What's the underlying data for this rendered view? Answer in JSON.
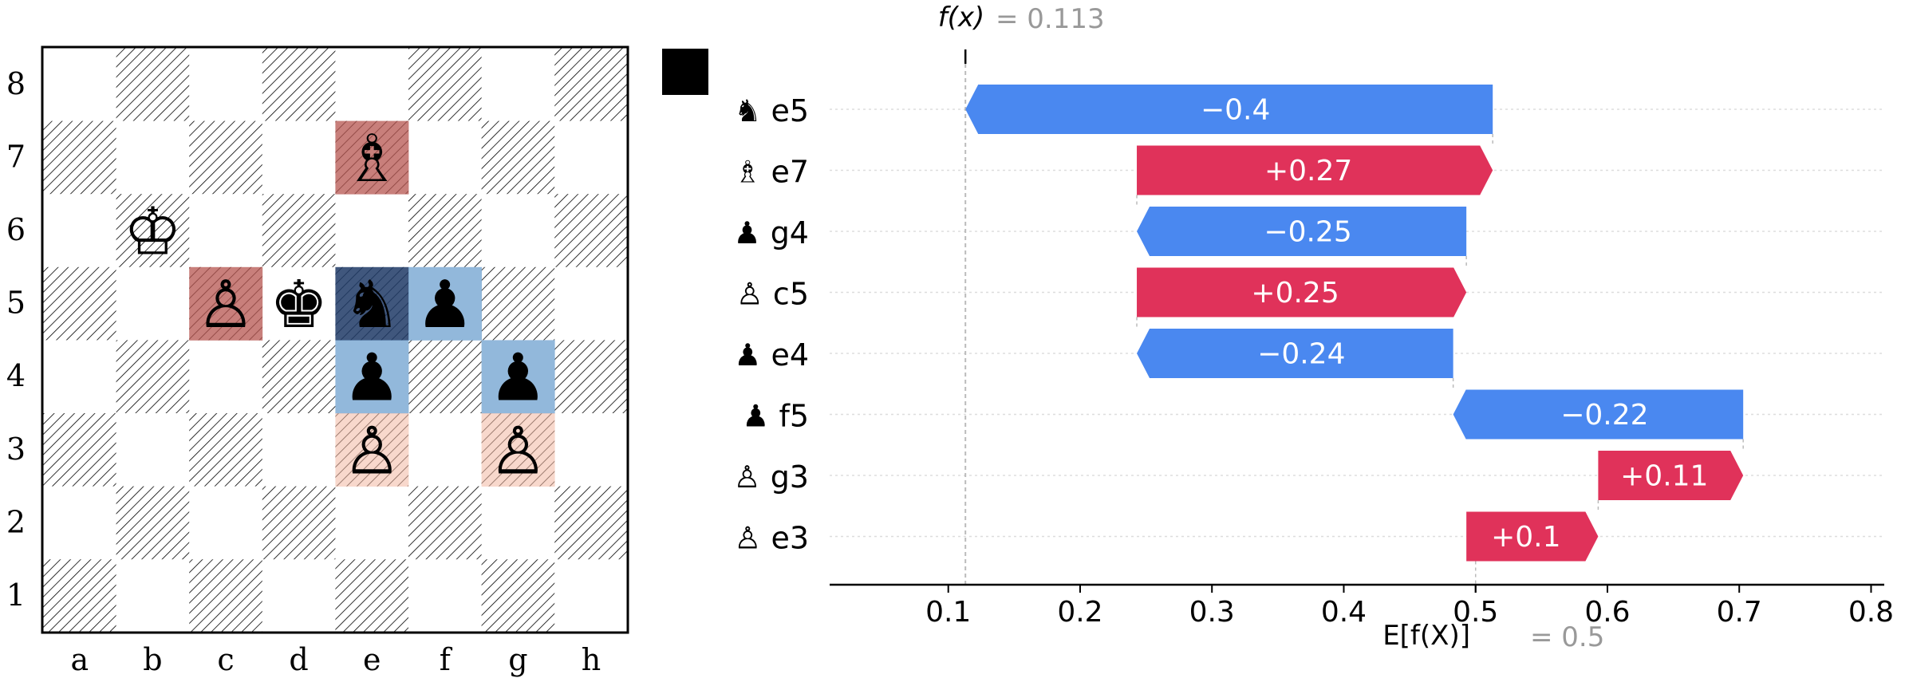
{
  "board": {
    "files": [
      "a",
      "b",
      "c",
      "d",
      "e",
      "f",
      "g",
      "h"
    ],
    "ranks": [
      "8",
      "7",
      "6",
      "5",
      "4",
      "3",
      "2",
      "1"
    ],
    "side_to_move_color": "#000000",
    "pieces": [
      {
        "square": "e7",
        "glyph": "♗",
        "name": "white-bishop"
      },
      {
        "square": "b6",
        "glyph": "♔",
        "name": "white-king"
      },
      {
        "square": "c5",
        "glyph": "♙",
        "name": "white-pawn"
      },
      {
        "square": "d5",
        "glyph": "♚",
        "name": "black-king"
      },
      {
        "square": "e5",
        "glyph": "♞",
        "name": "black-knight"
      },
      {
        "square": "f5",
        "glyph": "♟",
        "name": "black-pawn"
      },
      {
        "square": "e4",
        "glyph": "♟",
        "name": "black-pawn"
      },
      {
        "square": "g4",
        "glyph": "♟",
        "name": "black-pawn"
      },
      {
        "square": "e3",
        "glyph": "♙",
        "name": "white-pawn"
      },
      {
        "square": "g3",
        "glyph": "♙",
        "name": "white-pawn"
      }
    ],
    "highlights": [
      {
        "square": "e7",
        "color": "#b5544f",
        "opacity": 0.75
      },
      {
        "square": "c5",
        "color": "#b5544f",
        "opacity": 0.75
      },
      {
        "square": "e5",
        "color": "#1f3a66",
        "opacity": 0.85
      },
      {
        "square": "f5",
        "color": "#6ea0cf",
        "opacity": 0.75
      },
      {
        "square": "e4",
        "color": "#6ea0cf",
        "opacity": 0.75
      },
      {
        "square": "g4",
        "color": "#6ea0cf",
        "opacity": 0.75
      },
      {
        "square": "e3",
        "color": "#f2b8a2",
        "opacity": 0.55
      },
      {
        "square": "g3",
        "color": "#f2b8a2",
        "opacity": 0.55
      }
    ]
  },
  "chart_data": {
    "type": "waterfall",
    "fx_symbol": "f(x)",
    "fx_value_text": "= 0.113",
    "fx": 0.113,
    "base_symbol": "E[f(X)]",
    "base_value_text": "= 0.5",
    "base_value": 0.5,
    "xlim": [
      0.01,
      0.81
    ],
    "ticks": [
      0.1,
      0.2,
      0.3,
      0.4,
      0.5,
      0.6,
      0.7,
      0.8
    ],
    "tick_labels": [
      "0.1",
      "0.2",
      "0.3",
      "0.4",
      "0.5",
      "0.6",
      "0.7",
      "0.8"
    ],
    "positive_color": "#e0325a",
    "negative_color": "#4a88f0",
    "features": [
      {
        "glyph": "♞",
        "square": "e5",
        "value": -0.4,
        "label": "−0.4"
      },
      {
        "glyph": "♗",
        "square": "e7",
        "value": 0.27,
        "label": "+0.27"
      },
      {
        "glyph": "♟",
        "square": "g4",
        "value": -0.25,
        "label": "−0.25"
      },
      {
        "glyph": "♙",
        "square": "c5",
        "value": 0.25,
        "label": "+0.25"
      },
      {
        "glyph": "♟",
        "square": "e4",
        "value": -0.24,
        "label": "−0.24"
      },
      {
        "glyph": "♟",
        "square": "f5",
        "value": -0.22,
        "label": "−0.22"
      },
      {
        "glyph": "♙",
        "square": "g3",
        "value": 0.11,
        "label": "+0.11"
      },
      {
        "glyph": "♙",
        "square": "e3",
        "value": 0.1,
        "label": "+0.1"
      }
    ]
  }
}
